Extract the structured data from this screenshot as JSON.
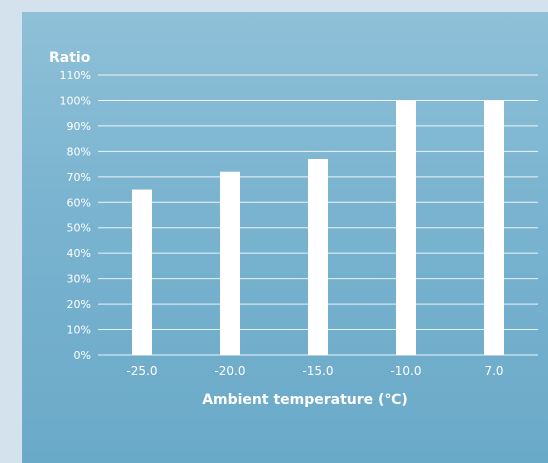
{
  "chart_data": {
    "type": "bar",
    "ylabel": "Ratio",
    "xlabel": "Ambient temperature (℃)",
    "categories": [
      "-25.0",
      "-20.0",
      "-15.0",
      "-10.0",
      "7.0"
    ],
    "values": [
      65,
      72,
      77,
      100,
      100
    ],
    "ylim": [
      0,
      110
    ],
    "yticks": [
      "0%",
      "10%",
      "20%",
      "30%",
      "40%",
      "50%",
      "60%",
      "70%",
      "80%",
      "90%",
      "100%",
      "110%"
    ],
    "grid": true,
    "colors": {
      "bar": "#ffffff",
      "grid": "#ffffff",
      "text": "#ffffff"
    }
  }
}
